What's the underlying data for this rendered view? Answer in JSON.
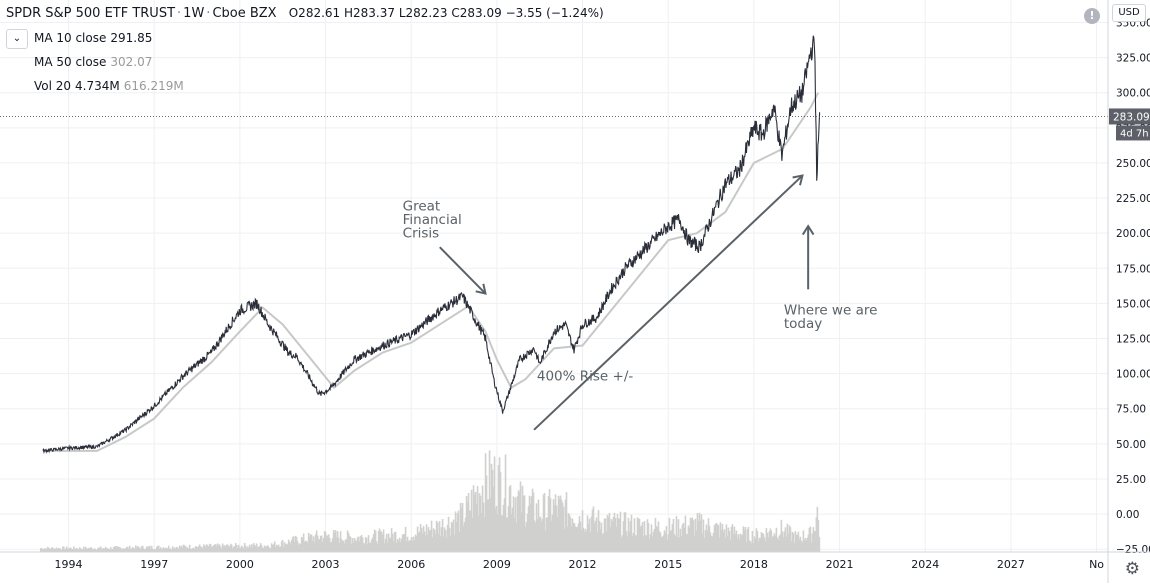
{
  "header": {
    "symbol": "SPDR S&P 500 ETF TRUST",
    "interval": "1W",
    "exchange": "Cboe BZX",
    "open": "O282.61",
    "high": "H283.37",
    "low": "L282.23",
    "close": "C283.09",
    "change": "−3.55 (−1.24%)"
  },
  "indicators": [
    {
      "label": "MA 10 close",
      "value": "291.85"
    },
    {
      "label": "MA 50 close",
      "value": "302.07"
    },
    {
      "label": "Vol 20",
      "value": "4.734M",
      "value2": "616.219M"
    }
  ],
  "currency_button": "USD",
  "price_tag": {
    "value": "283.09",
    "countdown": "4d 7h"
  },
  "colors": {
    "price_line": "#2a2e39",
    "ma10": "#1f1f1f",
    "ma50": "#c8c8c8",
    "volume": "#d0d0cf",
    "annotation": "#5a6268",
    "grid": "#eef0f3"
  },
  "chart_data": {
    "type": "line",
    "title": "SPDR S&P 500 ETF TRUST · 1W · Cboe BZX",
    "xlabel": "",
    "ylabel": "",
    "xlim": [
      1991.6,
      2030.4
    ],
    "ylim": [
      -27,
      366
    ],
    "y_ticks": [
      -25,
      0,
      25,
      50,
      75,
      100,
      125,
      150,
      175,
      200,
      225,
      250,
      275,
      300,
      325,
      350
    ],
    "y_tick_labels": [
      "−25.00",
      "0.00",
      "25.00",
      "50.00",
      "75.00",
      "100.00",
      "125.00",
      "150.00",
      "175.00",
      "200.00",
      "225.00",
      "250.00",
      "275.00",
      "300.00",
      "325.00",
      "350.00"
    ],
    "x_ticks": [
      1994,
      1997,
      2000,
      2003,
      2006,
      2009,
      2012,
      2015,
      2018,
      2021,
      2024,
      2027,
      2030
    ],
    "x_tick_labels": [
      "1994",
      "1997",
      "2000",
      "2003",
      "2006",
      "2009",
      "2012",
      "2015",
      "2018",
      "2021",
      "2024",
      "2027",
      "No"
    ],
    "grid": true,
    "last_value": 283.09,
    "series": [
      {
        "name": "",
        "role": "price",
        "x": [
          1993.1,
          1994.0,
          1995.0,
          1996.0,
          1997.0,
          1998.0,
          1998.7,
          1999.0,
          2000.0,
          2000.6,
          2001.0,
          2001.7,
          2002.0,
          2002.5,
          2002.8,
          2003.2,
          2004.0,
          2005.0,
          2006.0,
          2007.0,
          2007.8,
          2008.2,
          2008.6,
          2008.9,
          2009.2,
          2009.4,
          2009.8,
          2010.3,
          2010.5,
          2011.0,
          2011.4,
          2011.7,
          2012.0,
          2012.5,
          2013.0,
          2013.5,
          2014.0,
          2014.5,
          2015.0,
          2015.4,
          2015.7,
          2016.1,
          2016.5,
          2017.0,
          2017.5,
          2018.0,
          2018.3,
          2018.7,
          2018.98,
          2019.3,
          2019.7,
          2020.0,
          2020.13,
          2020.2,
          2020.3
        ],
        "y": [
          45,
          47,
          48,
          60,
          77,
          98,
          110,
          115,
          145,
          150,
          135,
          115,
          112,
          95,
          85,
          90,
          110,
          120,
          128,
          145,
          155,
          140,
          125,
          95,
          73,
          85,
          110,
          118,
          107,
          130,
          135,
          117,
          135,
          140,
          160,
          175,
          185,
          195,
          205,
          210,
          195,
          190,
          210,
          235,
          245,
          275,
          270,
          290,
          255,
          290,
          300,
          330,
          335,
          240,
          283
        ]
      },
      {
        "name": "",
        "role": "ma50",
        "x": [
          1993.1,
          1995.0,
          1996.0,
          1997.0,
          1998.0,
          1999.0,
          2000.0,
          2000.8,
          2001.5,
          2002.3,
          2003.3,
          2004.0,
          2005.0,
          2006.0,
          2007.0,
          2008.0,
          2008.6,
          2009.0,
          2009.5,
          2010.0,
          2011.0,
          2012.0,
          2013.0,
          2014.0,
          2015.0,
          2016.0,
          2017.0,
          2018.0,
          2019.0,
          2020.0,
          2020.25
        ],
        "y": [
          45,
          45,
          55,
          68,
          90,
          108,
          130,
          147,
          135,
          115,
          90,
          102,
          115,
          122,
          135,
          148,
          130,
          110,
          90,
          96,
          118,
          120,
          145,
          170,
          195,
          200,
          215,
          250,
          260,
          290,
          300
        ]
      }
    ],
    "volume": {
      "x": [
        1993.0,
        1995.0,
        1997.0,
        1999.0,
        2001.0,
        2002.5,
        2003.0,
        2004.0,
        2005.0,
        2006.0,
        2007.0,
        2007.8,
        2008.4,
        2008.8,
        2009.2,
        2009.8,
        2010.5,
        2011.0,
        2011.8,
        2012.5,
        2013.0,
        2014.0,
        2015.0,
        2016.0,
        2017.0,
        2018.0,
        2018.9,
        2019.5,
        2020.0,
        2020.2,
        2020.3
      ],
      "y": [
        -23,
        -23,
        -22,
        -21,
        -20,
        -12,
        -10,
        -12,
        -10,
        -8,
        0,
        10,
        40,
        50,
        45,
        25,
        15,
        20,
        12,
        5,
        3,
        0,
        -2,
        2,
        -5,
        -10,
        -3,
        -12,
        -8,
        15,
        -15
      ]
    },
    "annotations": [
      {
        "lines": [
          "Great",
          "Financial",
          "Crisis"
        ],
        "x": 2005.7,
        "y": 216
      },
      {
        "lines": [
          "400% Rise +/-"
        ],
        "x": 2010.4,
        "y": 95
      },
      {
        "lines": [
          "Where we are",
          "today"
        ],
        "x": 2019.05,
        "y": 142
      }
    ],
    "arrows": [
      {
        "from": [
          2007.0,
          190
        ],
        "to": [
          2008.6,
          157
        ]
      },
      {
        "from": [
          2010.3,
          60
        ],
        "to": [
          2019.7,
          241
        ]
      },
      {
        "from": [
          2019.9,
          160
        ],
        "to": [
          2019.9,
          205
        ]
      }
    ]
  }
}
